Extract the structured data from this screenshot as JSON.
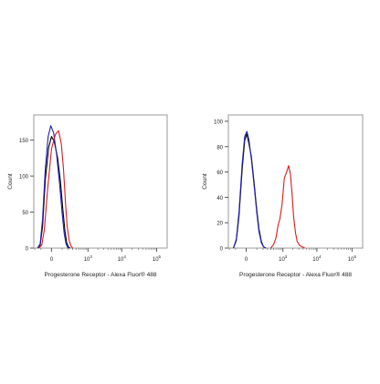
{
  "chart_data": [
    {
      "type": "line",
      "xlabel": "Progesterone Receptor - Alexa Fluor® 488",
      "ylabel": "Count",
      "x_scale": "biexponential",
      "x_ticks": [
        {
          "value": 0,
          "mantissa": "0",
          "exp": ""
        },
        {
          "value": 1000,
          "mantissa": "10",
          "exp": "3"
        },
        {
          "value": 10000,
          "mantissa": "10",
          "exp": "4"
        },
        {
          "value": 100000,
          "mantissa": "10",
          "exp": "5"
        }
      ],
      "y_ticks": [
        0,
        50,
        100,
        150
      ],
      "ylim": [
        0,
        185
      ],
      "series": [
        {
          "color": "#000000",
          "x": [
            -150,
            -110,
            -80,
            -50,
            -20,
            0,
            20,
            50,
            80,
            110,
            140,
            170,
            200,
            240
          ],
          "y": [
            0,
            4,
            30,
            95,
            140,
            155,
            148,
            125,
            92,
            55,
            25,
            8,
            2,
            0
          ]
        },
        {
          "color": "#1f1fb4",
          "x": [
            -150,
            -110,
            -80,
            -50,
            -25,
            -5,
            15,
            40,
            70,
            100,
            130,
            160,
            190,
            230
          ],
          "y": [
            0,
            6,
            40,
            110,
            155,
            170,
            160,
            130,
            90,
            50,
            20,
            6,
            1,
            0
          ]
        },
        {
          "color": "#e01a1a",
          "x": [
            -130,
            -90,
            -60,
            -30,
            0,
            30,
            60,
            90,
            120,
            150,
            180,
            220,
            260,
            300
          ],
          "y": [
            0,
            4,
            25,
            80,
            138,
            158,
            163,
            145,
            110,
            65,
            30,
            10,
            3,
            0
          ]
        }
      ]
    },
    {
      "type": "line",
      "xlabel": "Progesterone Receptor - Alexa Fluor® 488",
      "ylabel": "Count",
      "x_scale": "biexponential",
      "x_ticks": [
        {
          "value": 0,
          "mantissa": "0",
          "exp": ""
        },
        {
          "value": 1000,
          "mantissa": "10",
          "exp": "3"
        },
        {
          "value": 10000,
          "mantissa": "10",
          "exp": "4"
        },
        {
          "value": 100000,
          "mantissa": "10",
          "exp": "5"
        }
      ],
      "y_ticks": [
        0,
        20,
        40,
        60,
        80,
        100
      ],
      "ylim": [
        0,
        105
      ],
      "series": [
        {
          "color": "#000000",
          "x": [
            -130,
            -90,
            -60,
            -30,
            -10,
            5,
            20,
            40,
            70,
            100,
            130,
            170,
            210,
            260
          ],
          "y": [
            0,
            6,
            25,
            62,
            85,
            90,
            82,
            72,
            50,
            30,
            15,
            5,
            1,
            0
          ]
        },
        {
          "color": "#1f1fb4",
          "x": [
            -130,
            -90,
            -60,
            -30,
            -10,
            5,
            20,
            40,
            70,
            100,
            130,
            170,
            210,
            260
          ],
          "y": [
            0,
            7,
            28,
            66,
            88,
            92,
            85,
            70,
            48,
            28,
            13,
            4,
            1,
            0
          ]
        },
        {
          "color": "#e01a1a",
          "x": [
            400,
            500,
            600,
            700,
            800,
            950,
            1100,
            1300,
            1500,
            1700,
            1900,
            2100,
            2400,
            2700,
            3200,
            3800,
            4500
          ],
          "y": [
            0,
            3,
            8,
            18,
            23,
            35,
            55,
            60,
            65,
            58,
            42,
            25,
            12,
            5,
            2,
            1,
            0
          ]
        }
      ]
    }
  ]
}
